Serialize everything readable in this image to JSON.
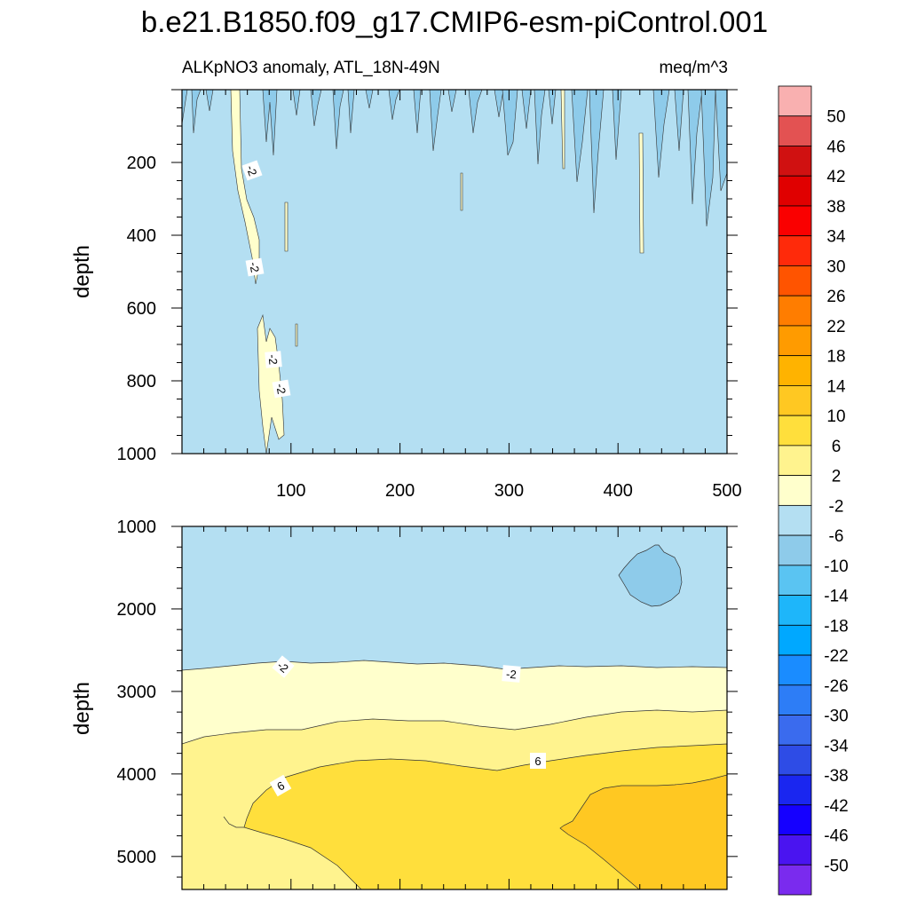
{
  "title": "b.e21.B1850.f09_g17.CMIP6-esm-piControl.001",
  "panel_top": {
    "left_string": "ALKpNO3 anomaly, ATL_18N-49N",
    "right_string": "meq/m^3",
    "ylabel": "depth"
  },
  "panel_bottom": {
    "ylabel": "depth"
  },
  "colorbar": {
    "labels": [
      "50",
      "46",
      "42",
      "38",
      "34",
      "30",
      "26",
      "22",
      "18",
      "14",
      "10",
      "6",
      "2",
      "-2",
      "-6",
      "-10",
      "-14",
      "-18",
      "-22",
      "-26",
      "-30",
      "-34",
      "-38",
      "-42",
      "-46",
      "-50"
    ],
    "colors": [
      "#F9B0B0",
      "#E35252",
      "#D01111",
      "#E00000",
      "#FA0000",
      "#FF2A0A",
      "#FF5400",
      "#FF7D00",
      "#FF9B00",
      "#FFB300",
      "#FFC822",
      "#FFDF3C",
      "#FFF38E",
      "#FFFFCC",
      "#B4DFF2",
      "#8ECBEA",
      "#5AC4F2",
      "#1EB6FA",
      "#00A8FF",
      "#1A8CFF",
      "#2D7DF6",
      "#3A6BEE",
      "#2E4CE6",
      "#1A26F0",
      "#1500FF",
      "#4A14F0",
      "#7A2BEE"
    ]
  },
  "chart_data": [
    {
      "type": "contour",
      "panel": "upper",
      "title": "ALKpNO3 anomaly, ATL_18N-49N",
      "units": "meq/m^3",
      "xlabel": "",
      "ylabel": "depth",
      "xlim": [
        0,
        500
      ],
      "ylim": [
        1000,
        0
      ],
      "xticks": [
        100,
        200,
        300,
        400,
        500
      ],
      "yticks": [
        200,
        400,
        600,
        800,
        1000
      ],
      "background_level": "-6 to -2",
      "contour_labels": [
        {
          "x": 65,
          "depth": 220,
          "text": "-2"
        },
        {
          "x": 67,
          "depth": 500,
          "text": "-2"
        },
        {
          "x": 84,
          "depth": 735,
          "text": "-2"
        },
        {
          "x": 91,
          "depth": 820,
          "text": "-2"
        }
      ],
      "features": [
        {
          "desc": "narrow filament of -2 to 2 anomaly",
          "x_range": [
            46,
            76
          ],
          "depth_range": [
            0,
            530
          ],
          "level": "-2 to 2"
        },
        {
          "desc": "patch of -2 to 2 anomaly",
          "x_range": [
            70,
            100
          ],
          "depth_range": [
            630,
            1000
          ],
          "level": "-2 to 2"
        },
        {
          "desc": "surface streaks of -10 to -6 anomaly",
          "x_range": [
            0,
            500
          ],
          "depth_range": [
            0,
            400
          ],
          "level": "-10 to -6"
        }
      ]
    },
    {
      "type": "contour",
      "panel": "lower",
      "xlabel": "",
      "ylabel": "depth",
      "xlim": [
        0,
        500
      ],
      "ylim": [
        5400,
        1000
      ],
      "yticks": [
        1000,
        2000,
        3000,
        4000,
        5000
      ],
      "contour_labels": [
        {
          "x": 94,
          "depth": 2690,
          "text": "-2"
        },
        {
          "x": 305,
          "depth": 2780,
          "text": "-2"
        },
        {
          "x": 328,
          "depth": 3830,
          "text": "6"
        },
        {
          "x": 89,
          "depth": 4130,
          "text": "6"
        }
      ],
      "regions": [
        {
          "level": "-6 to -2",
          "depth_range": [
            1000,
            2700
          ]
        },
        {
          "level": "-10 to -6",
          "desc": "isolated patch",
          "x_range": [
            400,
            455
          ],
          "depth_range": [
            1250,
            1950
          ]
        },
        {
          "level": "-2 to 2",
          "depth_range": [
            2700,
            3600
          ]
        },
        {
          "level": "2 to 6",
          "depth_range": [
            3350,
            5400
          ]
        },
        {
          "level": "6 to 10",
          "depth_range": [
            3830,
            5400
          ]
        },
        {
          "level": "10 to 14",
          "x_range": [
            350,
            500
          ],
          "depth_range": [
            4020,
            5400
          ]
        }
      ]
    }
  ]
}
